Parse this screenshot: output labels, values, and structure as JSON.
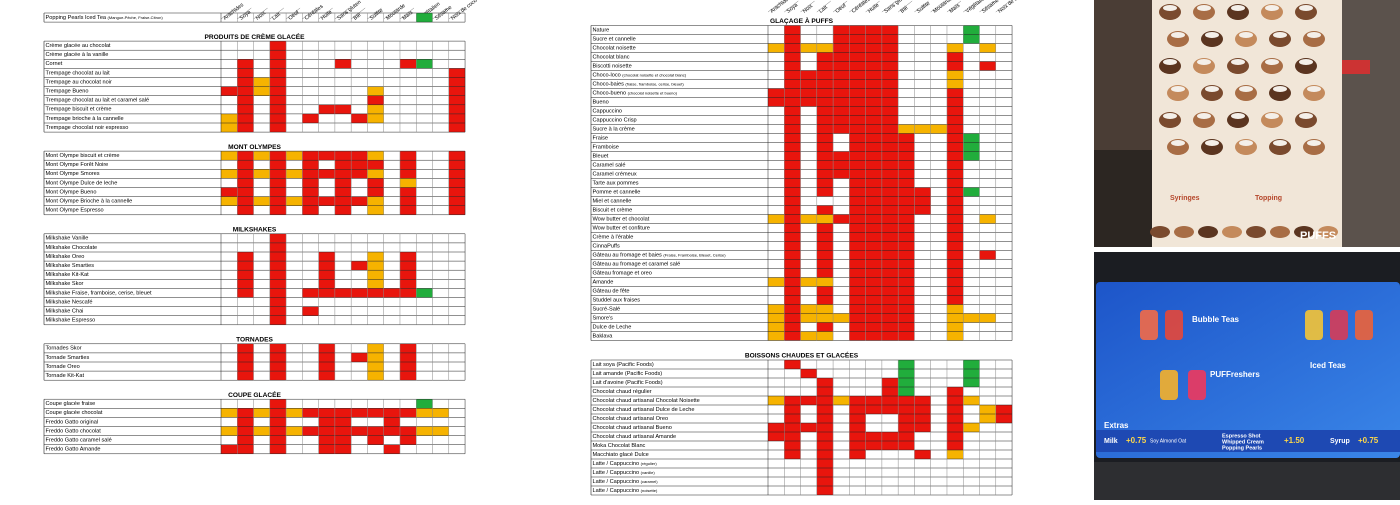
{
  "columns": [
    "Arachides",
    "Soya",
    "Noix",
    "Lait",
    "Oeuf",
    "Céréales",
    "Huile",
    "Sans gluten",
    "Blé",
    "Sulfite",
    "Moutarde",
    "Maïs",
    "Végétalien",
    "Sésame",
    "Noix de coco"
  ],
  "left_table": {
    "intro_rows": [
      {
        "name": "Popping Pearls Iced Tea",
        "note": "(Mangue-Pêche, Fraise-Citron)",
        "cells": "............G.."
      }
    ],
    "sections": [
      {
        "title": "PRODUITS DE CRÈME GLACÉE",
        "rows": [
          {
            "name": "Crème glacée au chocolat",
            "cells": "...R..........."
          },
          {
            "name": "Crème glacée à la vanille",
            "cells": "...R..........."
          },
          {
            "name": "Cornet",
            "cells": ".R.R...R...RG.."
          },
          {
            "name": "Trempage chocolat au lait",
            "cells": ".R.R..........R"
          },
          {
            "name": "Trempage au chocolat noir",
            "cells": ".RYR..........R"
          },
          {
            "name": "Trempage Bueno",
            "cells": "RRYR.....Y....R"
          },
          {
            "name": "Trempage chocolat au lait et caramel salé",
            "cells": ".R.R.....R....R"
          },
          {
            "name": "Trempage biscuit et crème",
            "cells": ".R.R..RR.Y....R"
          },
          {
            "name": "Trempage brioche à la cannelle",
            "cells": "YR.R.R..RY....R"
          },
          {
            "name": "Trempage chocolat noir espresso",
            "cells": "YR.R..........R"
          }
        ]
      },
      {
        "title": "MONT OLYMPES",
        "rows": [
          {
            "name": "Mont Olympe biscuit et crème",
            "cells": "YRYRYRRRRY.R..R"
          },
          {
            "name": "Mont Olympe Forêt Noire",
            "cells": ".R.R.R.RRR.R..R"
          },
          {
            "name": "Mont Olympe Smores",
            "cells": "YRYRYRRRRY.R..R"
          },
          {
            "name": "Mont Olympe Dulce de leche",
            "cells": ".R.R.R.R.R.Y..R"
          },
          {
            "name": "Mont Olympe Bueno",
            "cells": "RR.R.R.R.R.R..R"
          },
          {
            "name": "Mont Olympe Brioche à la cannelle",
            "cells": "YRYRYRRRRY.R..R"
          },
          {
            "name": "Mont Olympe Espresso",
            "cells": ".R.R.R.R.Y.R..R"
          }
        ]
      },
      {
        "title": "MILKSHAKES",
        "rows": [
          {
            "name": "Milkshake Vanille",
            "cells": "...R..........."
          },
          {
            "name": "Milkshake Chocolate",
            "cells": "...R..........."
          },
          {
            "name": "Milkshake Oreo",
            "cells": ".R.R..R..Y.R..."
          },
          {
            "name": "Milkshake Smarties",
            "cells": ".R.R..R.RY.R..."
          },
          {
            "name": "Milkshake Kit-Kat",
            "cells": ".R.R..R..Y.R..."
          },
          {
            "name": "Milkshake Skor",
            "cells": ".R.R..R..Y.R..."
          },
          {
            "name": "Milkshake Fraise, framboise, cerise, bleuet",
            "cells": ".R.R.RRRRRRRG.."
          },
          {
            "name": "Milkshake Nescafé",
            "cells": "...R..........."
          },
          {
            "name": "Milkshake Chai",
            "cells": "...R.R........."
          },
          {
            "name": "Milkshake Espresso",
            "cells": "...R..........."
          }
        ]
      },
      {
        "title": "TORNADES",
        "rows": [
          {
            "name": "Tornades Skor",
            "cells": ".R.R..R..Y.R..."
          },
          {
            "name": "Tornade Smarties",
            "cells": ".R.R..R.RY.R..."
          },
          {
            "name": "Tornade Oreo",
            "cells": ".R.R..R..Y.R..."
          },
          {
            "name": "Tornade Kit-Kat",
            "cells": ".R.R..R..Y.R..."
          }
        ]
      },
      {
        "title": "COUPE GLACÉE",
        "rows": [
          {
            "name": "Coupe glacée fraise",
            "cells": "...R........G.."
          },
          {
            "name": "Coupe glacée chocolat",
            "cells": "YRYRYRRRRRRRYY."
          },
          {
            "name": "Freddo Gatto original",
            "cells": ".R.R..RR..R...."
          },
          {
            "name": "Freddo Gatto chocolat",
            "cells": "YRYRYRRRRRRRYY."
          },
          {
            "name": "Freddo Gatto caramel salé",
            "cells": ".R.R..RR.R.R..."
          },
          {
            "name": "Freddo Gatto Amande",
            "cells": "RR.R..RR..R...."
          }
        ]
      }
    ]
  },
  "middle_table": {
    "sections": [
      {
        "title": "GLAÇAGE À PUFFS",
        "rows": [
          {
            "name": "Nature",
            "cells": ".R..RRRR....G.."
          },
          {
            "name": "Sucre et cannelle",
            "cells": ".R..RRRR....G.."
          },
          {
            "name": "Chocolat noisette",
            "cells": "YRYYRRRR...Y.Y."
          },
          {
            "name": "Chocolat blanc",
            "cells": ".R.RRRRR...R..."
          },
          {
            "name": "Biscotti noisette",
            "cells": ".R.RRRRR...R.R."
          },
          {
            "name": "Choco-loco",
            "note": "(chocolat noisette et chocolat blanc)",
            "cells": ".RRRRRRR...Y..."
          },
          {
            "name": "Choco-baies",
            "note": "(fraise, framboise, cerise, bleuet)",
            "cells": ".RRRRRRR...Y..."
          },
          {
            "name": "Choco-bueno",
            "note": "(chocolat noisette et bueno)",
            "cells": "RRRRRRRR...R..."
          },
          {
            "name": "Bueno",
            "cells": "RRRRRRRR...R..."
          },
          {
            "name": "Cappuccino",
            "cells": ".R.RRRRR...R..."
          },
          {
            "name": "Cappuccino Crisp",
            "cells": ".R.RRRRR...R..."
          },
          {
            "name": "Sucre à la crème",
            "cells": ".R.RRRRRYYYR..."
          },
          {
            "name": "Fraise",
            "cells": ".R.R.RRRR..RG.."
          },
          {
            "name": "Framboise",
            "cells": ".R.R.RRRR..RG.."
          },
          {
            "name": "Bleuet",
            "cells": ".R.RRRRRR..RG.."
          },
          {
            "name": "Caramel salé",
            "cells": ".R.RRRRRR..R..."
          },
          {
            "name": "Caramel crémeux",
            "cells": ".R.RRRRRR..R..."
          },
          {
            "name": "Tarte aux pommes",
            "cells": ".R.R.RRRR..R..."
          },
          {
            "name": "Pomme et cannelle",
            "cells": ".R.R.RRRRR.RG.."
          },
          {
            "name": "Miel et cannelle",
            "cells": ".R...RRRRR.R..."
          },
          {
            "name": "Biscuit et crème",
            "cells": ".R.R.RRRRR.R..."
          },
          {
            "name": "Wow butter et chocolat",
            "cells": "YRYYRRRRR..R.Y."
          },
          {
            "name": "Wow butter et confiture",
            "cells": ".R.R.RRRR..R..."
          },
          {
            "name": "Crème à l'érable",
            "cells": ".R.R.RRRR..R..."
          },
          {
            "name": "CinnaPuffs",
            "cells": ".R.R.RRRR..R..."
          },
          {
            "name": "Gâteau au fromage et baies",
            "note": "(Fraise, Framboise, Bleuet, Cerise)",
            "cells": ".R.R.RRRR..R.R."
          },
          {
            "name": "Gâteau au fromage et caramel salé",
            "cells": ".R.R.RRRR..R..."
          },
          {
            "name": "Gâteau fromage et oreo",
            "cells": ".R.R.RRRR..R..."
          },
          {
            "name": "Amande",
            "cells": "YRYY.RRRR..R..."
          },
          {
            "name": "Gâteau de fête",
            "cells": ".R.R.RRRR..R..."
          },
          {
            "name": "Studdel aux fraises",
            "cells": ".R.R.RRRR..R..."
          },
          {
            "name": "Sucré-Salé",
            "cells": "YRYY.RRRR..Y..."
          },
          {
            "name": "Smore's",
            "cells": "YRYYYRRRR..YYY."
          },
          {
            "name": "Dulce de Leche",
            "cells": "YR.R.RRRR..Y..."
          },
          {
            "name": "Baklava",
            "cells": "YRYY.RRRR..Y..."
          }
        ]
      },
      {
        "title": "BOISSONS CHAUDES ET GLACÉES",
        "rows": [
          {
            "name": "Lait soya (Pacific Foods)",
            "cells": ".R......G...G.."
          },
          {
            "name": "Lait amande (Pacific Foods)",
            "cells": "..R.....G...G.."
          },
          {
            "name": "Lait d'avoine (Pacific Foods)",
            "cells": "...R...RG...G.."
          },
          {
            "name": "Chocolat chaud régulier",
            "cells": "...R...RG..R..."
          },
          {
            "name": "Chocolat chaud artisanal Chocolat Noisette",
            "cells": "YRRRYRRRRR.RY.."
          },
          {
            "name": "Chocolat chaud artisanal Dulce de Leche",
            "cells": ".R.R.RRRRR.R.YR"
          },
          {
            "name": "Chocolat chaud artisanal Oreo",
            "cells": ".R.R.R..RR.R.YR"
          },
          {
            "name": "Chocolat chaud artisanal Bueno",
            "cells": "RRRR.R..RR.RY.."
          },
          {
            "name": "Chocolat chaud artisanal Amande",
            "cells": "RR.R.RRRR..R..."
          },
          {
            "name": "Moka Chocolat Blanc",
            "cells": ".R.R.RRRR..R..."
          },
          {
            "name": "Macchiato glacé Dulce",
            "cells": ".R.R.R...R.Y..."
          },
          {
            "name": "Latte / Cappuccino",
            "note": "(régulier)",
            "cells": "...R..........."
          },
          {
            "name": "Latte / Cappuccino",
            "note": "(vanille)",
            "cells": "...R..........."
          },
          {
            "name": "Latte / Cappuccino",
            "note": "(caramel)",
            "cells": "...R..........."
          },
          {
            "name": "Latte / Cappuccino",
            "note": "(noisette)",
            "cells": "...R..........."
          }
        ]
      }
    ]
  },
  "photos": {
    "poster": {
      "syringes": "Syringes",
      "topping": "Topping",
      "brand": "PUFFS"
    },
    "screen": {
      "bubble": "Bubble Teas",
      "freshers": "PUFFreshers",
      "iced": "Iced Teas",
      "extras": "Extras",
      "milk": "Milk",
      "milk_price": "+0.75",
      "milk_options": "Soy Almond Oat",
      "espresso": "Espresso Shot",
      "whipped": "Whipped Cream",
      "pearls": "Popping Pearls",
      "extra_price": "+1.50",
      "syrup": "Syrup",
      "syrup_price": "+0.75"
    }
  }
}
